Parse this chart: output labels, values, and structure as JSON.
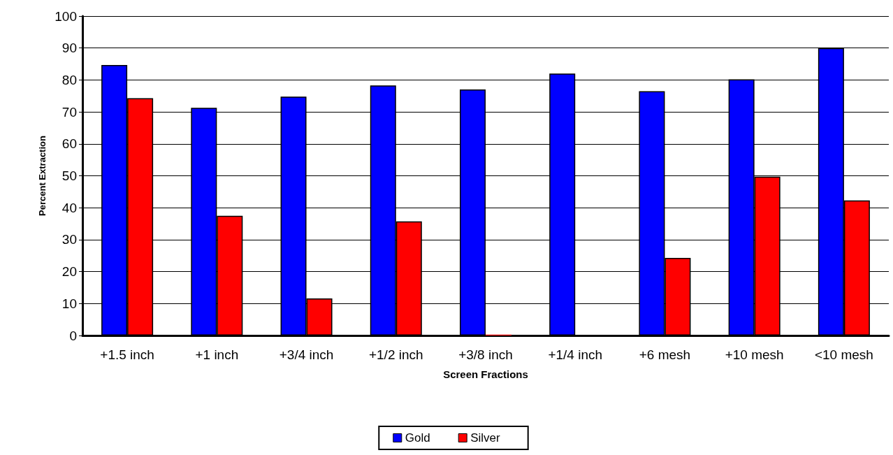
{
  "chart_data": {
    "type": "bar",
    "xlabel": "Screen Fractions",
    "ylabel": "Percent Extraction",
    "categories": [
      "+1.5 inch",
      "+1 inch",
      "+3/4 inch",
      "+1/2 inch",
      "+3/8 inch",
      "+1/4 inch",
      "+6 mesh",
      "+10 mesh",
      "<10 mesh"
    ],
    "series": [
      {
        "name": "Gold",
        "color": "#0000ff",
        "values": [
          84.7,
          71.3,
          74.8,
          78.3,
          77,
          82,
          76.5,
          80.2,
          90
        ]
      },
      {
        "name": "Silver",
        "color": "#ff0000",
        "values": [
          74.3,
          37.5,
          11.6,
          35.7,
          0.3,
          0,
          24.3,
          49.7,
          42.3
        ]
      }
    ],
    "ylim": [
      0,
      100
    ],
    "yticks": [
      0,
      10,
      20,
      30,
      40,
      50,
      60,
      70,
      80,
      90,
      100
    ],
    "grid": "y",
    "legend": "bottom"
  }
}
